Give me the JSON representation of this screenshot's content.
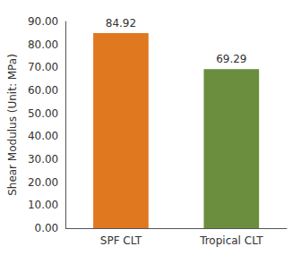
{
  "chart_data": {
    "type": "bar",
    "categories": [
      "SPF CLT",
      "Tropical CLT"
    ],
    "values": [
      84.92,
      69.29
    ],
    "colors": [
      "#E07820",
      "#6B8E3E"
    ],
    "ylabel": "Shear Modulus (Unit: MPa)",
    "ylim": [
      0,
      90
    ],
    "yticks": [
      {
        "value": 0,
        "label": "0.00"
      },
      {
        "value": 10,
        "label": "10.00"
      },
      {
        "value": 20,
        "label": "20.00"
      },
      {
        "value": 30,
        "label": "30.00"
      },
      {
        "value": 40,
        "label": "40.00"
      },
      {
        "value": 50,
        "label": "50.00"
      },
      {
        "value": 60,
        "label": "60.00"
      },
      {
        "value": 70,
        "label": "70.00"
      },
      {
        "value": 80,
        "label": "80.00"
      },
      {
        "value": 90,
        "label": "90.00"
      }
    ],
    "data_labels": true,
    "grid": false
  }
}
